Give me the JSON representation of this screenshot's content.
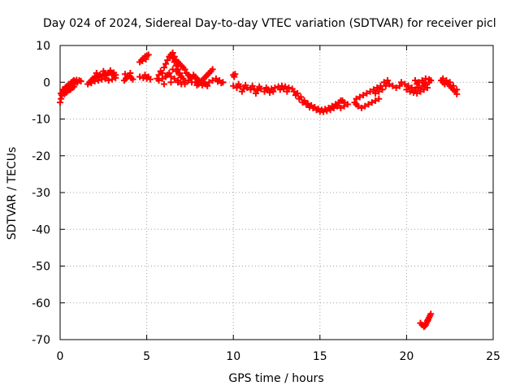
{
  "chart_data": {
    "type": "scatter",
    "title": "Day 024 of 2024, Sidereal Day-to-day VTEC variation (SDTVAR) for receiver picl",
    "xlabel": "GPS time / hours",
    "ylabel": "SDTVAR / TECUs",
    "xlim": [
      0,
      25
    ],
    "ylim": [
      -70,
      10
    ],
    "xticks": [
      "0",
      "5",
      "10",
      "15",
      "20",
      "25"
    ],
    "yticks": [
      "10",
      "0",
      "-10",
      "-20",
      "-30",
      "-40",
      "-50",
      "-60",
      "-70"
    ],
    "grid": true,
    "marker": "+",
    "color": "#ff0000",
    "series": [
      {
        "points": [
          [
            0.0,
            -5.5
          ],
          [
            0.05,
            -4.5
          ],
          [
            0.1,
            -3.5
          ],
          [
            0.15,
            -3.0
          ],
          [
            0.2,
            -2.5
          ],
          [
            0.25,
            -2.0
          ],
          [
            0.3,
            -1.5
          ],
          [
            0.35,
            -1.2
          ],
          [
            0.4,
            -2.5
          ],
          [
            0.45,
            -1.0
          ],
          [
            0.5,
            -0.5
          ],
          [
            0.55,
            -1.8
          ],
          [
            0.6,
            -0.5
          ],
          [
            0.65,
            0.0
          ],
          [
            0.7,
            -1.0
          ],
          [
            0.75,
            0.3
          ],
          [
            0.8,
            0.5
          ],
          [
            0.85,
            -0.5
          ],
          [
            0.9,
            0.2
          ],
          [
            0.95,
            0.6
          ],
          [
            1.0,
            0.0
          ],
          [
            1.1,
            0.5
          ],
          [
            1.2,
            0.3
          ],
          [
            0.05,
            -3.0
          ],
          [
            0.15,
            -2.0
          ],
          [
            0.25,
            -3.2
          ],
          [
            0.35,
            -2.8
          ],
          [
            0.5,
            -2.2
          ],
          [
            0.6,
            -2.0
          ],
          [
            0.7,
            -1.5
          ],
          [
            0.8,
            -1.2
          ],
          [
            1.6,
            -0.5
          ],
          [
            1.7,
            0.0
          ],
          [
            1.8,
            0.5
          ],
          [
            1.9,
            1.0
          ],
          [
            2.0,
            1.5
          ],
          [
            2.1,
            1.2
          ],
          [
            2.2,
            1.8
          ],
          [
            2.3,
            2.0
          ],
          [
            2.4,
            1.5
          ],
          [
            2.5,
            2.2
          ],
          [
            2.6,
            2.5
          ],
          [
            2.7,
            2.0
          ],
          [
            2.8,
            2.5
          ],
          [
            2.9,
            2.8
          ],
          [
            3.0,
            2.2
          ],
          [
            3.1,
            1.8
          ],
          [
            3.2,
            2.0
          ],
          [
            1.8,
            -0.2
          ],
          [
            2.0,
            0.3
          ],
          [
            2.2,
            0.5
          ],
          [
            2.4,
            0.8
          ],
          [
            2.6,
            1.0
          ],
          [
            2.8,
            0.5
          ],
          [
            3.0,
            0.8
          ],
          [
            3.2,
            1.2
          ],
          [
            2.1,
            2.5
          ],
          [
            2.5,
            3.0
          ],
          [
            2.9,
            3.2
          ],
          [
            3.1,
            2.6
          ],
          [
            3.7,
            0.5
          ],
          [
            3.8,
            1.0
          ],
          [
            3.9,
            1.5
          ],
          [
            4.0,
            1.8
          ],
          [
            4.1,
            1.2
          ],
          [
            4.2,
            0.8
          ],
          [
            3.75,
            2.2
          ],
          [
            4.05,
            2.5
          ],
          [
            4.6,
            1.5
          ],
          [
            4.8,
            1.2
          ],
          [
            5.0,
            1.0
          ],
          [
            5.2,
            0.8
          ],
          [
            4.9,
            2.0
          ],
          [
            5.1,
            1.5
          ],
          [
            4.6,
            5.5
          ],
          [
            4.7,
            6.0
          ],
          [
            4.8,
            6.5
          ],
          [
            4.9,
            7.0
          ],
          [
            5.0,
            7.2
          ],
          [
            5.1,
            7.5
          ],
          [
            4.75,
            5.8
          ],
          [
            4.95,
            6.3
          ],
          [
            5.6,
            1.0
          ],
          [
            5.7,
            2.0
          ],
          [
            5.8,
            3.0
          ],
          [
            5.9,
            2.5
          ],
          [
            6.0,
            4.0
          ],
          [
            6.1,
            5.0
          ],
          [
            6.2,
            6.0
          ],
          [
            6.3,
            7.0
          ],
          [
            6.4,
            7.5
          ],
          [
            6.5,
            6.5
          ],
          [
            6.6,
            5.5
          ],
          [
            6.7,
            4.5
          ],
          [
            6.8,
            3.5
          ],
          [
            6.9,
            2.5
          ],
          [
            7.0,
            1.5
          ],
          [
            5.7,
            0.5
          ],
          [
            5.9,
            1.0
          ],
          [
            6.1,
            1.5
          ],
          [
            6.3,
            2.5
          ],
          [
            6.5,
            3.5
          ],
          [
            6.7,
            3.0
          ],
          [
            6.9,
            2.0
          ],
          [
            7.1,
            1.0
          ],
          [
            6.0,
            -0.5
          ],
          [
            6.4,
            0.0
          ],
          [
            6.8,
            0.5
          ],
          [
            7.2,
            -0.5
          ],
          [
            6.5,
            8.0
          ],
          [
            6.6,
            7.0
          ],
          [
            6.7,
            6.0
          ],
          [
            6.8,
            5.5
          ],
          [
            6.9,
            5.0
          ],
          [
            7.0,
            4.5
          ],
          [
            7.1,
            4.0
          ],
          [
            7.2,
            3.5
          ],
          [
            7.3,
            2.5
          ],
          [
            7.4,
            2.0
          ],
          [
            7.5,
            1.5
          ],
          [
            7.6,
            1.0
          ],
          [
            6.2,
            2.0
          ],
          [
            6.4,
            1.5
          ],
          [
            6.6,
            1.0
          ],
          [
            6.8,
            0.0
          ],
          [
            7.0,
            -0.5
          ],
          [
            7.2,
            0.0
          ],
          [
            7.4,
            0.5
          ],
          [
            7.6,
            0.0
          ],
          [
            7.7,
            2.0
          ],
          [
            7.8,
            1.5
          ],
          [
            7.9,
            1.0
          ],
          [
            8.0,
            0.5
          ],
          [
            8.1,
            0.0
          ],
          [
            8.2,
            0.5
          ],
          [
            8.3,
            1.0
          ],
          [
            8.4,
            1.5
          ],
          [
            8.5,
            2.0
          ],
          [
            8.6,
            2.5
          ],
          [
            8.7,
            3.0
          ],
          [
            8.8,
            3.5
          ],
          [
            7.8,
            0.0
          ],
          [
            8.0,
            -0.5
          ],
          [
            8.2,
            -0.8
          ],
          [
            8.4,
            -0.5
          ],
          [
            8.6,
            0.0
          ],
          [
            7.9,
            -0.8
          ],
          [
            8.3,
            -0.3
          ],
          [
            8.5,
            -1.0
          ],
          [
            8.8,
            0.5
          ],
          [
            9.0,
            1.0
          ],
          [
            9.2,
            0.5
          ],
          [
            9.4,
            0.0
          ],
          [
            9.1,
            0.2
          ],
          [
            9.3,
            -0.2
          ],
          [
            10.0,
            2.0
          ],
          [
            10.05,
            1.5
          ],
          [
            10.1,
            2.2
          ],
          [
            10.0,
            -1.0
          ],
          [
            10.2,
            -1.5
          ],
          [
            10.4,
            -1.2
          ],
          [
            10.6,
            -1.8
          ],
          [
            10.8,
            -1.5
          ],
          [
            11.0,
            -2.0
          ],
          [
            11.2,
            -1.8
          ],
          [
            11.4,
            -2.2
          ],
          [
            11.6,
            -1.8
          ],
          [
            11.8,
            -2.5
          ],
          [
            12.0,
            -2.0
          ],
          [
            12.2,
            -1.8
          ],
          [
            12.4,
            -1.5
          ],
          [
            12.6,
            -1.2
          ],
          [
            12.8,
            -1.0
          ],
          [
            13.0,
            -1.2
          ],
          [
            13.2,
            -1.5
          ],
          [
            13.4,
            -1.8
          ],
          [
            10.3,
            -0.5
          ],
          [
            10.7,
            -0.8
          ],
          [
            11.1,
            -1.0
          ],
          [
            11.5,
            -1.2
          ],
          [
            11.9,
            -1.5
          ],
          [
            12.3,
            -2.5
          ],
          [
            12.7,
            -2.0
          ],
          [
            13.1,
            -2.5
          ],
          [
            10.5,
            -2.5
          ],
          [
            11.3,
            -3.0
          ],
          [
            12.1,
            -2.8
          ],
          [
            12.9,
            -1.8
          ],
          [
            13.5,
            -2.5
          ],
          [
            13.7,
            -3.0
          ],
          [
            13.9,
            -4.0
          ],
          [
            14.1,
            -5.0
          ],
          [
            14.3,
            -5.8
          ],
          [
            14.5,
            -6.3
          ],
          [
            14.7,
            -6.8
          ],
          [
            14.9,
            -7.2
          ],
          [
            15.1,
            -7.5
          ],
          [
            15.3,
            -7.3
          ],
          [
            15.5,
            -7.0
          ],
          [
            15.7,
            -6.5
          ],
          [
            15.9,
            -6.0
          ],
          [
            16.1,
            -5.5
          ],
          [
            16.3,
            -5.0
          ],
          [
            13.6,
            -3.5
          ],
          [
            13.8,
            -4.5
          ],
          [
            14.0,
            -5.5
          ],
          [
            14.2,
            -6.0
          ],
          [
            14.4,
            -6.8
          ],
          [
            14.6,
            -7.0
          ],
          [
            14.8,
            -7.5
          ],
          [
            15.0,
            -8.0
          ],
          [
            15.2,
            -8.0
          ],
          [
            15.4,
            -7.8
          ],
          [
            15.6,
            -7.5
          ],
          [
            15.8,
            -7.0
          ],
          [
            16.0,
            -6.5
          ],
          [
            16.2,
            -7.0
          ],
          [
            16.4,
            -6.5
          ],
          [
            16.6,
            -6.0
          ],
          [
            16.2,
            -5.0
          ],
          [
            16.4,
            -5.5
          ],
          [
            17.0,
            -5.5
          ],
          [
            17.1,
            -6.0
          ],
          [
            17.2,
            -6.5
          ],
          [
            17.4,
            -7.0
          ],
          [
            17.6,
            -6.5
          ],
          [
            17.8,
            -6.0
          ],
          [
            18.0,
            -5.5
          ],
          [
            18.2,
            -5.0
          ],
          [
            18.4,
            -4.5
          ],
          [
            17.1,
            -4.5
          ],
          [
            17.3,
            -4.0
          ],
          [
            17.5,
            -3.5
          ],
          [
            17.7,
            -3.0
          ],
          [
            17.9,
            -2.5
          ],
          [
            18.1,
            -2.0
          ],
          [
            18.3,
            -1.5
          ],
          [
            18.5,
            -1.0
          ],
          [
            18.7,
            0.0
          ],
          [
            18.9,
            0.5
          ],
          [
            18.2,
            -3.0
          ],
          [
            18.4,
            -2.5
          ],
          [
            18.6,
            -2.0
          ],
          [
            18.8,
            -1.0
          ],
          [
            19.0,
            -0.5
          ],
          [
            19.2,
            -1.0
          ],
          [
            19.4,
            -1.5
          ],
          [
            19.6,
            -1.0
          ],
          [
            19.7,
            0.0
          ],
          [
            19.9,
            -0.5
          ],
          [
            20.1,
            -1.0
          ],
          [
            20.3,
            -1.5
          ],
          [
            20.5,
            -2.0
          ],
          [
            20.7,
            -1.5
          ],
          [
            20.9,
            -1.0
          ],
          [
            21.1,
            -0.5
          ],
          [
            21.3,
            0.0
          ],
          [
            21.4,
            0.5
          ],
          [
            20.0,
            -2.0
          ],
          [
            20.2,
            -2.5
          ],
          [
            20.4,
            -2.8
          ],
          [
            20.6,
            -3.0
          ],
          [
            20.8,
            -2.5
          ],
          [
            21.0,
            -2.0
          ],
          [
            21.2,
            -1.5
          ],
          [
            20.5,
            0.5
          ],
          [
            20.7,
            0.0
          ],
          [
            20.9,
            0.5
          ],
          [
            21.1,
            1.0
          ],
          [
            21.3,
            0.8
          ],
          [
            20.6,
            -0.5
          ],
          [
            21.0,
            -0.2
          ],
          [
            22.0,
            0.5
          ],
          [
            22.1,
            0.0
          ],
          [
            22.2,
            -0.5
          ],
          [
            22.3,
            0.0
          ],
          [
            22.4,
            -0.5
          ],
          [
            22.5,
            -1.0
          ],
          [
            22.6,
            -1.5
          ],
          [
            22.7,
            -2.0
          ],
          [
            22.8,
            -2.5
          ],
          [
            22.9,
            -3.2
          ],
          [
            22.1,
            1.0
          ],
          [
            22.3,
            0.5
          ],
          [
            22.5,
            0.0
          ],
          [
            22.7,
            -1.0
          ],
          [
            22.9,
            -2.0
          ],
          [
            20.8,
            -65.5
          ],
          [
            20.9,
            -66.0
          ],
          [
            21.0,
            -66.5
          ],
          [
            21.1,
            -66.0
          ],
          [
            21.15,
            -65.5
          ],
          [
            21.2,
            -65.0
          ],
          [
            21.25,
            -64.5
          ],
          [
            21.3,
            -64.0
          ],
          [
            21.35,
            -63.5
          ],
          [
            21.4,
            -63.0
          ],
          [
            21.05,
            -66.3
          ],
          [
            21.22,
            -64.8
          ]
        ]
      }
    ]
  }
}
